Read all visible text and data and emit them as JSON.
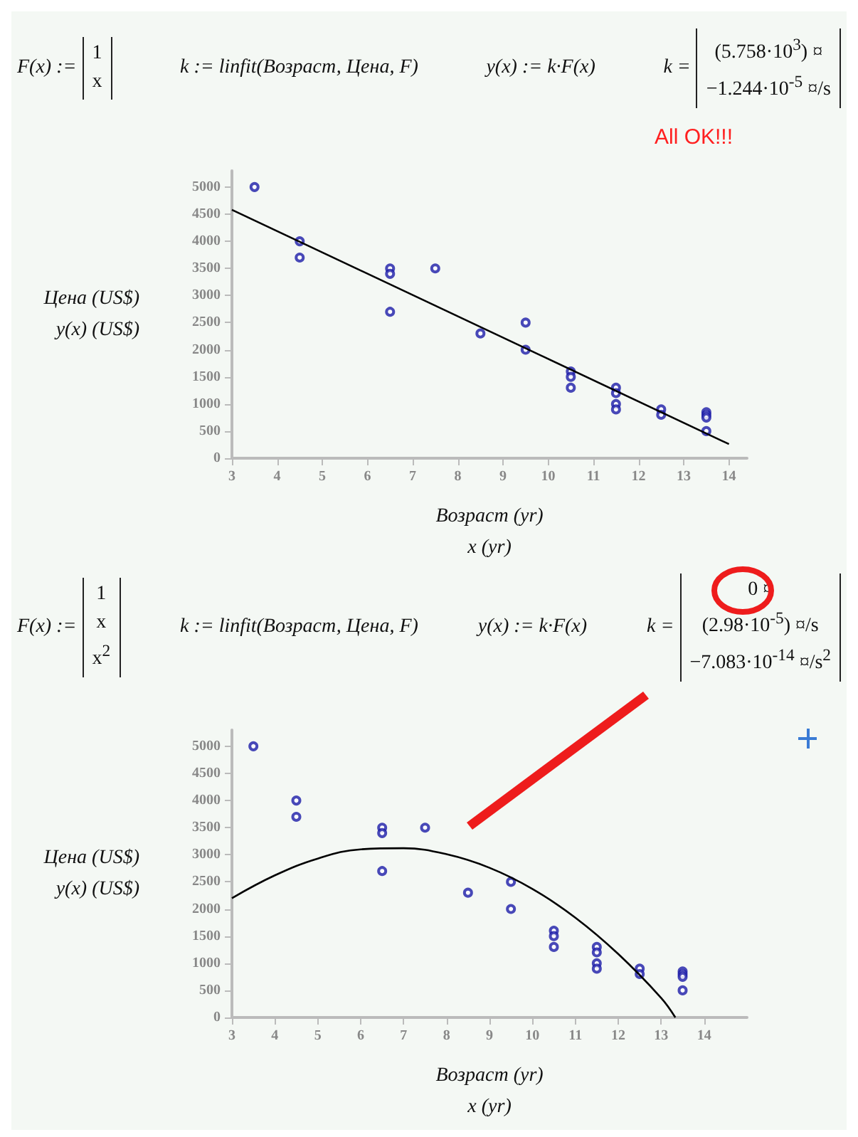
{
  "chart_data": [
    {
      "type": "scatter",
      "xlabel": "Возраст (yr)\nx (yr)",
      "ylabel": "Цена (US$)\ny(x) (US$)",
      "annotations": [
        "F(x) :=\n1\nx",
        "k := linfit(Возраст, Цена, F)",
        "y(x) := k·F(x)",
        "k =\n(5.758·10$^{3}$) ¤\n−1.244·10$^{-5}$ ¤/s",
        "All OK!!!"
      ],
      "xlim": [
        3,
        14.4
      ],
      "xticks": [
        3,
        4,
        5,
        6,
        7,
        8,
        9,
        10,
        11,
        12,
        13,
        14
      ],
      "ylim": [
        0,
        5300
      ],
      "yticks": [
        0,
        500,
        1000,
        1500,
        2000,
        2500,
        3000,
        3500,
        4000,
        4500,
        5000
      ],
      "series": [
        {
          "color": "#1c1ca8",
          "marker": "circle",
          "x": [
            3.5,
            4.5,
            4.5,
            6.5,
            6.5,
            6.5,
            7.5,
            8.5,
            9.5,
            9.5,
            10.5,
            10.5,
            10.5,
            11.5,
            11.5,
            11.5,
            11.5,
            12.5,
            12.5,
            13.5,
            13.5,
            13.5,
            13.5
          ],
          "values": [
            5000,
            4000,
            3700,
            3500,
            3400,
            2700,
            3500,
            2300,
            2500,
            2000,
            1600,
            1500,
            1300,
            1300,
            1200,
            1000,
            900,
            900,
            800,
            850,
            800,
            750,
            500
          ]
        },
        {
          "type": "line",
          "color": "#000000",
          "marker": "none",
          "x": [
            3,
            14
          ],
          "values": [
            4580,
            260
          ]
        }
      ]
    },
    {
      "type": "scatter",
      "xlabel": "Возраст (yr)\nx (yr)",
      "ylabel": "Цена (US$)\ny(x) (US$)",
      "annotations": [
        "F(x) :=\n1\nx\nx$^{2}$",
        "k := linfit(Возраст, Цена, F)",
        "y(x) := k·F(x)",
        "k =\n0 ¤\n(2.98·10$^{-5}$) ¤/s\n−7.083·10$^{-14}$ ¤/s$^{2}$"
      ],
      "xlim": [
        3,
        15
      ],
      "xticks": [
        3,
        4,
        5,
        6,
        7,
        8,
        9,
        10,
        11,
        12,
        13,
        14
      ],
      "ylim": [
        0,
        5300
      ],
      "yticks": [
        0,
        500,
        1000,
        1500,
        2000,
        2500,
        3000,
        3500,
        4000,
        4500,
        5000
      ],
      "series": [
        {
          "color": "#1c1ca8",
          "marker": "circle",
          "x": [
            3.5,
            4.5,
            4.5,
            6.5,
            6.5,
            6.5,
            7.5,
            8.5,
            9.5,
            9.5,
            10.5,
            10.5,
            10.5,
            11.5,
            11.5,
            11.5,
            11.5,
            12.5,
            12.5,
            13.5,
            13.5,
            13.5,
            13.5
          ],
          "values": [
            5000,
            4000,
            3700,
            3500,
            3400,
            2700,
            3500,
            2300,
            2500,
            2000,
            1600,
            1500,
            1300,
            1300,
            1200,
            1000,
            900,
            900,
            800,
            850,
            800,
            750,
            500
          ]
        },
        {
          "type": "line",
          "color": "#000000",
          "marker": "none",
          "x": [
            3,
            4,
            5,
            6,
            7,
            8,
            9,
            10,
            11,
            12,
            13,
            13.33
          ],
          "values": [
            2200,
            2620,
            2930,
            3100,
            3120,
            3010,
            2760,
            2370,
            1840,
            1170,
            360,
            0
          ]
        }
      ]
    }
  ]
}
